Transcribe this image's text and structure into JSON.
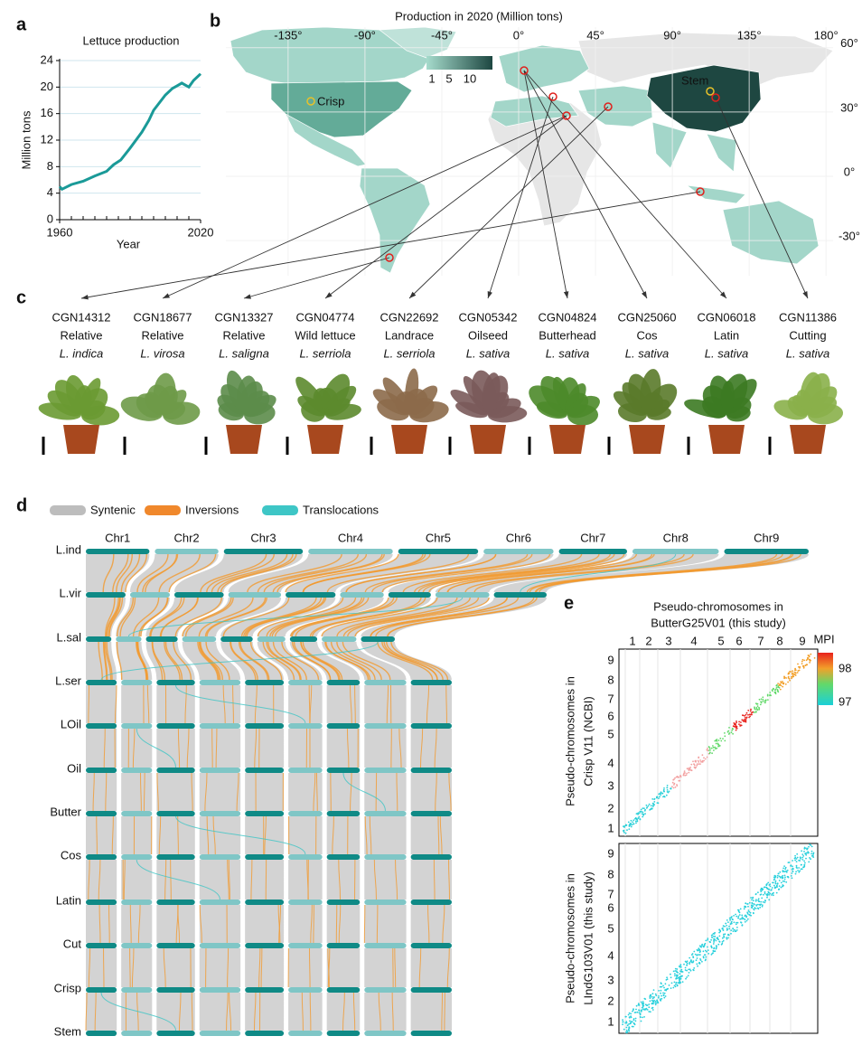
{
  "chart_data": {
    "type": "line",
    "label": "a",
    "title": "Lettuce production",
    "ylabel": "Million tons",
    "xlabel": "Year",
    "x": [
      1960,
      1961,
      1965,
      1970,
      1975,
      1980,
      1983,
      1986,
      1990,
      1995,
      1998,
      2000,
      2005,
      2008,
      2010,
      2012,
      2015,
      2017,
      2020
    ],
    "values": [
      5.0,
      4.6,
      5.3,
      5.8,
      6.6,
      7.3,
      8.3,
      9.0,
      10.8,
      13.2,
      15.0,
      16.5,
      18.8,
      19.8,
      20.2,
      20.6,
      20.0,
      21.0,
      22.0
    ],
    "color": "#1a9a98",
    "xlim": [
      1960,
      2020
    ],
    "xticks": [
      1960,
      2020
    ],
    "ylim": [
      0,
      24
    ],
    "yticks": [
      0,
      4,
      8,
      12,
      16,
      20,
      24
    ],
    "grid": true
  },
  "map": {
    "label": "b",
    "title": "Production in 2020 (Million tons)",
    "lon_ticks": [
      {
        "value": -135,
        "label": "-135°"
      },
      {
        "value": -90,
        "label": "-90°"
      },
      {
        "value": -45,
        "label": "-45°"
      },
      {
        "value": 0,
        "label": "0°"
      },
      {
        "value": 45,
        "label": "45°"
      },
      {
        "value": 90,
        "label": "90°"
      },
      {
        "value": 135,
        "label": "135°"
      },
      {
        "value": 180,
        "label": "180°"
      }
    ],
    "lat_ticks": [
      {
        "value": 60,
        "label": "60°"
      },
      {
        "value": 30,
        "label": "30°"
      },
      {
        "value": 0,
        "label": "0°"
      },
      {
        "value": -30,
        "label": "-30°"
      }
    ],
    "legend_ticks": [
      1,
      5,
      10
    ],
    "annotations": [
      "Crisp",
      "Stem"
    ]
  },
  "accessions": {
    "label": "c",
    "items": [
      {
        "id": "CGN14312",
        "group": "Relative",
        "species": "L. indica",
        "color": "#c8141c"
      },
      {
        "id": "CGN18677",
        "group": "Relative",
        "species": "L. virosa",
        "color": "#c8141c"
      },
      {
        "id": "CGN13327",
        "group": "Relative",
        "species": "L. saligna",
        "color": "#c8141c"
      },
      {
        "id": "CGN04774",
        "group": "Wild lettuce",
        "species": "L. serriola",
        "color": "#c8141c"
      },
      {
        "id": "CGN22692",
        "group": "Landrace",
        "species": "L. serriola",
        "color": "#222222"
      },
      {
        "id": "CGN05342",
        "group": "Oilseed",
        "species": "L. sativa",
        "color": "#2f5b9e"
      },
      {
        "id": "CGN04824",
        "group": "Butterhead",
        "species": "L. sativa",
        "color": "#2f5b9e"
      },
      {
        "id": "CGN25060",
        "group": "Cos",
        "species": "L. sativa",
        "color": "#2f5b9e"
      },
      {
        "id": "CGN06018",
        "group": "Latin",
        "species": "L. sativa",
        "color": "#2f5b9e"
      },
      {
        "id": "CGN11386",
        "group": "Cutting",
        "species": "L. sativa",
        "color": "#2f5b9e"
      }
    ]
  },
  "synteny": {
    "label": "d",
    "legend": [
      {
        "name": "Syntenic",
        "color": "#bdbdbd"
      },
      {
        "name": "Inversions",
        "color": "#f0882c"
      },
      {
        "name": "Translocations",
        "color": "#3ec6c6"
      }
    ],
    "chromosomes": [
      "Chr1",
      "Chr2",
      "Chr3",
      "Chr4",
      "Chr5",
      "Chr6",
      "Chr7",
      "Chr8",
      "Chr9"
    ],
    "genomes": [
      "L.ind",
      "L.vir",
      "L.sal",
      "L.ser",
      "LOil",
      "Oil",
      "Butter",
      "Cos",
      "Latin",
      "Cut",
      "Crisp",
      "Stem"
    ]
  },
  "dotplot": {
    "label": "e",
    "title": [
      "Pseudo-chromosomes in",
      "ButterG25V01 (this study)"
    ],
    "ylabels": [
      [
        "Pseudo-chromosomes in",
        "Crisp V11 (NCBI)"
      ],
      [
        "Pseudo-chromosomes in",
        "LIndG103V01 (this study)"
      ]
    ],
    "ticks": [
      1,
      2,
      3,
      4,
      5,
      6,
      7,
      8,
      9
    ],
    "colorbar": {
      "title": "MPI",
      "ticks": [
        98,
        97
      ]
    }
  }
}
